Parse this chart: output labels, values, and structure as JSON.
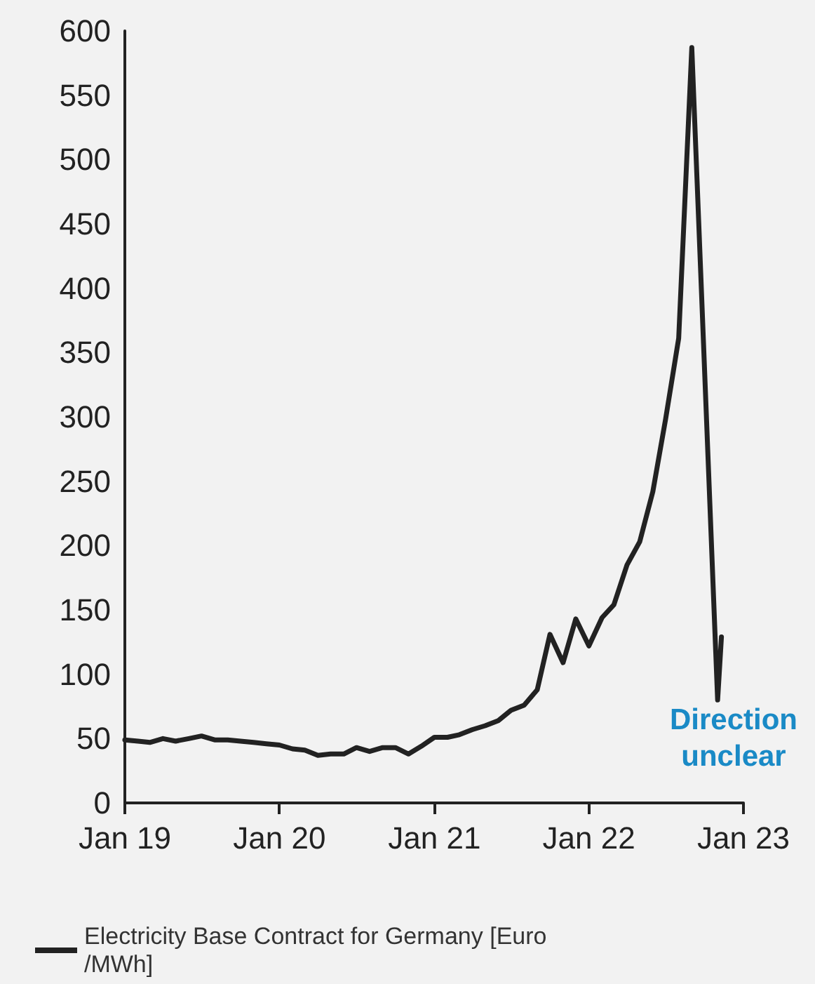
{
  "chart_data": {
    "type": "line",
    "x": [
      "2019-01",
      "2019-02",
      "2019-03",
      "2019-04",
      "2019-05",
      "2019-06",
      "2019-07",
      "2019-08",
      "2019-09",
      "2019-10",
      "2019-11",
      "2019-12",
      "2020-01",
      "2020-02",
      "2020-03",
      "2020-04",
      "2020-05",
      "2020-06",
      "2020-07",
      "2020-08",
      "2020-09",
      "2020-10",
      "2020-11",
      "2020-12",
      "2021-01",
      "2021-02",
      "2021-03",
      "2021-04",
      "2021-05",
      "2021-06",
      "2021-07",
      "2021-08",
      "2021-09",
      "2021-10",
      "2021-11",
      "2021-12",
      "2022-01",
      "2022-02",
      "2022-03",
      "2022-04",
      "2022-05",
      "2022-06",
      "2022-07",
      "2022-08",
      "2022-09",
      "2022-11-01",
      "2022-11-10"
    ],
    "series": [
      {
        "name": "Electricity Base Contract for Germany [Euro/MWh]",
        "color": "#222222",
        "values": [
          49,
          48,
          47,
          50,
          48,
          50,
          52,
          49,
          49,
          48,
          47,
          46,
          45,
          42,
          41,
          37,
          38,
          38,
          43,
          40,
          43,
          43,
          38,
          44,
          51,
          51,
          53,
          57,
          60,
          64,
          72,
          76,
          88,
          131,
          109,
          143,
          122,
          144,
          154,
          185,
          203,
          242,
          298,
          361,
          587,
          80,
          129
        ]
      }
    ],
    "xlim": [
      "2019-01",
      "2023-01"
    ],
    "xticks": [
      {
        "value": "2019-01",
        "label": "Jan 19"
      },
      {
        "value": "2020-01",
        "label": "Jan 20"
      },
      {
        "value": "2021-01",
        "label": "Jan 21"
      },
      {
        "value": "2022-01",
        "label": "Jan 22"
      },
      {
        "value": "2023-01",
        "label": "Jan 23"
      }
    ],
    "ylim": [
      0,
      600
    ],
    "yticks": [
      0,
      50,
      100,
      150,
      200,
      250,
      300,
      350,
      400,
      450,
      500,
      550,
      600
    ],
    "grid": false,
    "legend": "bottom",
    "marker": "none",
    "line_style": "solid",
    "annotations": [
      "Direction\nunclear"
    ]
  }
}
